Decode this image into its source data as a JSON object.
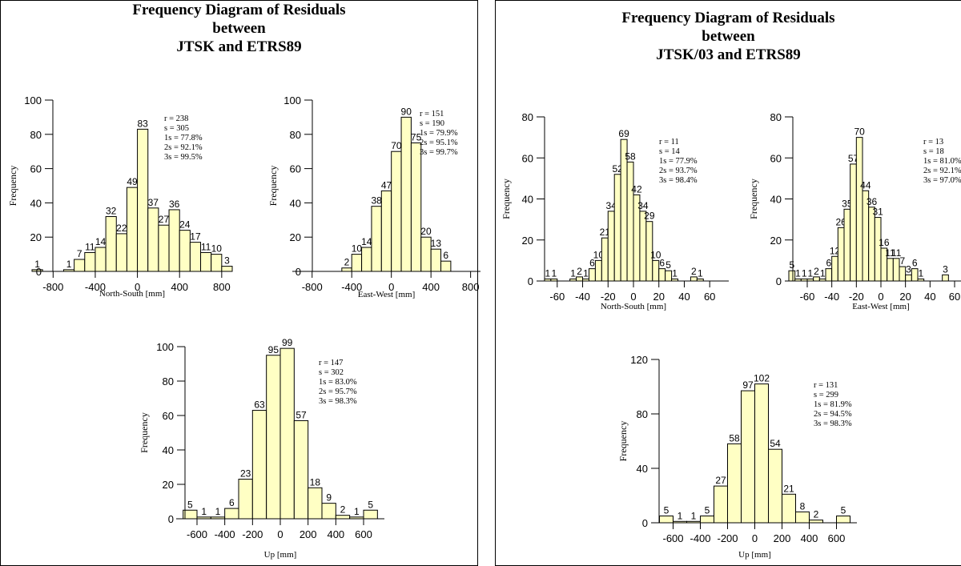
{
  "panels": [
    {
      "title": [
        "Frequency Diagram of Residuals",
        "between",
        "JTSK and ETRS89"
      ],
      "charts": [
        {
          "type": "bar",
          "xlabel": "North-South [mm]",
          "ylabel": "Frequency",
          "xlim": [
            -1000,
            900
          ],
          "ylim": [
            0,
            100
          ],
          "xticks": [
            -800,
            -400,
            0,
            400,
            800
          ],
          "yticks": [
            0,
            20,
            40,
            60,
            80,
            100
          ],
          "bin_width": 100,
          "bins": [
            [
              -1000,
              1
            ],
            [
              -700,
              1
            ],
            [
              -600,
              7
            ],
            [
              -500,
              11
            ],
            [
              -400,
              14
            ],
            [
              -300,
              32
            ],
            [
              -200,
              22
            ],
            [
              -100,
              49
            ],
            [
              0,
              83
            ],
            [
              100,
              37
            ],
            [
              200,
              27
            ],
            [
              300,
              36
            ],
            [
              400,
              24
            ],
            [
              500,
              17
            ],
            [
              600,
              11
            ],
            [
              700,
              10
            ],
            [
              800,
              3
            ]
          ],
          "stats": [
            "r  = 238",
            "s  = 305",
            "1s  = 77.8%",
            "2s  = 92.1%",
            "3s  = 99.5%"
          ]
        },
        {
          "type": "bar",
          "xlabel": "East-West [mm]",
          "ylabel": "Frequency",
          "xlim": [
            -1000,
            900
          ],
          "ylim": [
            0,
            100
          ],
          "xticks": [
            -800,
            -400,
            0,
            400,
            800
          ],
          "yticks": [
            0,
            20,
            40,
            60,
            80,
            100
          ],
          "bin_width": 100,
          "bins": [
            [
              -500,
              2
            ],
            [
              -400,
              10
            ],
            [
              -300,
              14
            ],
            [
              -200,
              38
            ],
            [
              -100,
              47
            ],
            [
              0,
              70
            ],
            [
              100,
              90
            ],
            [
              200,
              75
            ],
            [
              300,
              20
            ],
            [
              400,
              13
            ],
            [
              500,
              6
            ]
          ],
          "stats": [
            "r  = 151",
            "s  = 190",
            "1s  = 79.9%",
            "2s  = 95.1%",
            "3s  = 99.7%"
          ]
        },
        {
          "type": "bar",
          "xlabel": "Up [mm]",
          "ylabel": "Frequency",
          "xlim": [
            -750,
            750
          ],
          "ylim": [
            0,
            100
          ],
          "xticks": [
            -600,
            -400,
            -200,
            0,
            200,
            400,
            600
          ],
          "yticks": [
            0,
            20,
            40,
            60,
            80,
            100
          ],
          "bin_width": 100,
          "bins": [
            [
              -700,
              5
            ],
            [
              -600,
              1
            ],
            [
              -500,
              1
            ],
            [
              -400,
              6
            ],
            [
              -300,
              23
            ],
            [
              -200,
              63
            ],
            [
              -100,
              95
            ],
            [
              0,
              99
            ],
            [
              100,
              57
            ],
            [
              200,
              18
            ],
            [
              300,
              9
            ],
            [
              400,
              2
            ],
            [
              500,
              1
            ],
            [
              600,
              5
            ]
          ],
          "stats": [
            "r  = 147",
            "s  = 302",
            "1s  = 83.0%",
            "2s  = 95.7%",
            "3s  = 98.3%"
          ]
        }
      ]
    },
    {
      "title": [
        "Frequency Diagram of Residuals",
        "between",
        "JTSK/03 and ETRS89"
      ],
      "charts": [
        {
          "type": "bar",
          "xlabel": "North-South [mm]",
          "ylabel": "Frequency",
          "xlim": [
            -75,
            75
          ],
          "ylim": [
            0,
            80
          ],
          "xticks": [
            -60,
            -40,
            -20,
            0,
            20,
            40,
            60
          ],
          "yticks": [
            0,
            20,
            40,
            60,
            80
          ],
          "bin_width": 5,
          "bins": [
            [
              -70,
              1
            ],
            [
              -65,
              1
            ],
            [
              -50,
              1
            ],
            [
              -45,
              2
            ],
            [
              -40,
              1
            ],
            [
              -35,
              6
            ],
            [
              -30,
              10
            ],
            [
              -25,
              21
            ],
            [
              -20,
              34
            ],
            [
              -15,
              52
            ],
            [
              -10,
              69
            ],
            [
              -5,
              58
            ],
            [
              0,
              42
            ],
            [
              5,
              34
            ],
            [
              10,
              29
            ],
            [
              15,
              10
            ],
            [
              20,
              6
            ],
            [
              25,
              5
            ],
            [
              30,
              1
            ],
            [
              45,
              2
            ],
            [
              50,
              1
            ]
          ],
          "stats": [
            "r  = 11",
            "s  = 14",
            "1s  = 77.9%",
            "2s  = 93.7%",
            "3s  = 98.4%"
          ]
        },
        {
          "type": "bar",
          "xlabel": "East-West  [mm]",
          "ylabel": "Frequency",
          "xlim": [
            -75,
            75
          ],
          "ylim": [
            0,
            80
          ],
          "xticks": [
            -60,
            -40,
            -20,
            0,
            20,
            40,
            60
          ],
          "yticks": [
            0,
            20,
            40,
            60,
            80
          ],
          "bin_width": 5,
          "bins": [
            [
              -75,
              5
            ],
            [
              -70,
              1
            ],
            [
              -65,
              1
            ],
            [
              -60,
              1
            ],
            [
              -55,
              2
            ],
            [
              -50,
              1
            ],
            [
              -45,
              6
            ],
            [
              -40,
              12
            ],
            [
              -35,
              26
            ],
            [
              -30,
              35
            ],
            [
              -25,
              57
            ],
            [
              -20,
              70
            ],
            [
              -15,
              44
            ],
            [
              -10,
              36
            ],
            [
              -5,
              31
            ],
            [
              0,
              16
            ],
            [
              5,
              11
            ],
            [
              10,
              11
            ],
            [
              15,
              7
            ],
            [
              20,
              3
            ],
            [
              25,
              6
            ],
            [
              30,
              1
            ],
            [
              50,
              3
            ]
          ],
          "stats": [
            "r  = 13",
            "s  = 18",
            "1s  = 81.0%",
            "2s  = 92.1%",
            "3s  = 97.0%"
          ]
        },
        {
          "type": "bar",
          "xlabel": "Up [mm]",
          "ylabel": "Frequency",
          "xlim": [
            -750,
            750
          ],
          "ylim": [
            0,
            120
          ],
          "xticks": [
            -600,
            -400,
            -200,
            0,
            200,
            400,
            600
          ],
          "yticks": [
            0,
            40,
            80,
            120
          ],
          "bin_width": 100,
          "bins": [
            [
              -700,
              5
            ],
            [
              -600,
              1
            ],
            [
              -500,
              1
            ],
            [
              -400,
              5
            ],
            [
              -300,
              27
            ],
            [
              -200,
              58
            ],
            [
              -100,
              97
            ],
            [
              0,
              102
            ],
            [
              100,
              54
            ],
            [
              200,
              21
            ],
            [
              300,
              8
            ],
            [
              400,
              2
            ],
            [
              600,
              5
            ]
          ],
          "stats": [
            "r  = 131",
            "s  = 299",
            "1s  = 81.9%",
            "2s  = 94.5%",
            "3s  = 98.3%"
          ]
        }
      ]
    }
  ],
  "colors": {
    "bar_fill": "#ffffc4",
    "bar_stroke": "#000000",
    "axis": "#000000"
  }
}
